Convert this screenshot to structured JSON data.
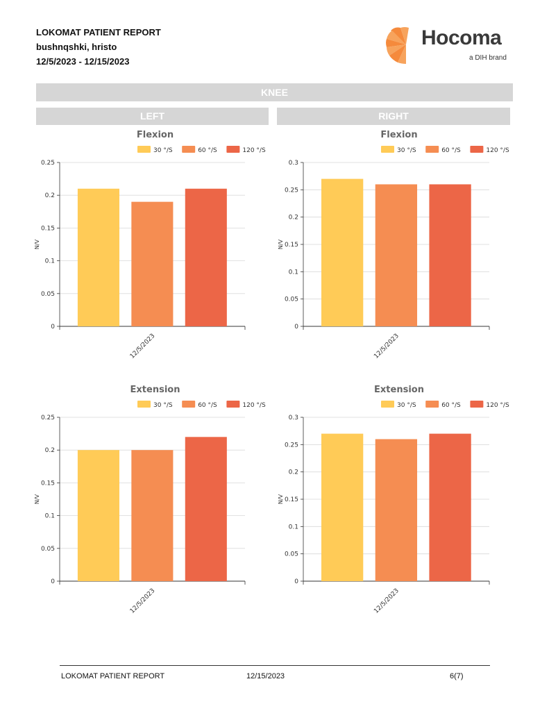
{
  "header": {
    "title": "LOKOMAT PATIENT REPORT",
    "patient": "bushnqshki, hristo",
    "date_range": "12/5/2023 - 12/15/2023"
  },
  "logo": {
    "word": "Hocoma",
    "tagline": "a DIH brand"
  },
  "sections": {
    "joint": "KNEE",
    "left": "LEFT",
    "right": "RIGHT"
  },
  "legend": {
    "labels": [
      "30 °/S",
      "60 °/S",
      "120 °/S"
    ],
    "colors": [
      "#ffcb57",
      "#f58d52",
      "#ec6647"
    ]
  },
  "chart_data": [
    {
      "type": "bar",
      "side": "LEFT",
      "title": "Flexion",
      "ylabel": "N/V",
      "categories": [
        "12/5/2023"
      ],
      "ylim": [
        0,
        0.25
      ],
      "yticks": [
        "0",
        "0.05",
        "0.1",
        "0.15",
        "0.2",
        "0.25"
      ],
      "series": [
        {
          "name": "30 °/S",
          "values": [
            0.21
          ]
        },
        {
          "name": "60 °/S",
          "values": [
            0.19
          ]
        },
        {
          "name": "120 °/S",
          "values": [
            0.21
          ]
        }
      ]
    },
    {
      "type": "bar",
      "side": "RIGHT",
      "title": "Flexion",
      "ylabel": "N/V",
      "categories": [
        "12/5/2023"
      ],
      "ylim": [
        0,
        0.3
      ],
      "yticks": [
        "0",
        "0.05",
        "0.1",
        "0.15",
        "0.2",
        "0.25",
        "0.3"
      ],
      "series": [
        {
          "name": "30 °/S",
          "values": [
            0.27
          ]
        },
        {
          "name": "60 °/S",
          "values": [
            0.26
          ]
        },
        {
          "name": "120 °/S",
          "values": [
            0.26
          ]
        }
      ]
    },
    {
      "type": "bar",
      "side": "LEFT",
      "title": "Extension",
      "ylabel": "N/V",
      "categories": [
        "12/5/2023"
      ],
      "ylim": [
        0,
        0.25
      ],
      "yticks": [
        "0",
        "0.05",
        "0.1",
        "0.15",
        "0.2",
        "0.25"
      ],
      "series": [
        {
          "name": "30 °/S",
          "values": [
            0.2
          ]
        },
        {
          "name": "60 °/S",
          "values": [
            0.2
          ]
        },
        {
          "name": "120 °/S",
          "values": [
            0.22
          ]
        }
      ]
    },
    {
      "type": "bar",
      "side": "RIGHT",
      "title": "Extension",
      "ylabel": "N/V",
      "categories": [
        "12/5/2023"
      ],
      "ylim": [
        0,
        0.3
      ],
      "yticks": [
        "0",
        "0.05",
        "0.1",
        "0.15",
        "0.2",
        "0.25",
        "0.3"
      ],
      "series": [
        {
          "name": "30 °/S",
          "values": [
            0.27
          ]
        },
        {
          "name": "60 °/S",
          "values": [
            0.26
          ]
        },
        {
          "name": "120 °/S",
          "values": [
            0.27
          ]
        }
      ]
    }
  ],
  "footer": {
    "title": "LOKOMAT PATIENT REPORT",
    "date": "12/15/2023",
    "page": "6(7)"
  }
}
